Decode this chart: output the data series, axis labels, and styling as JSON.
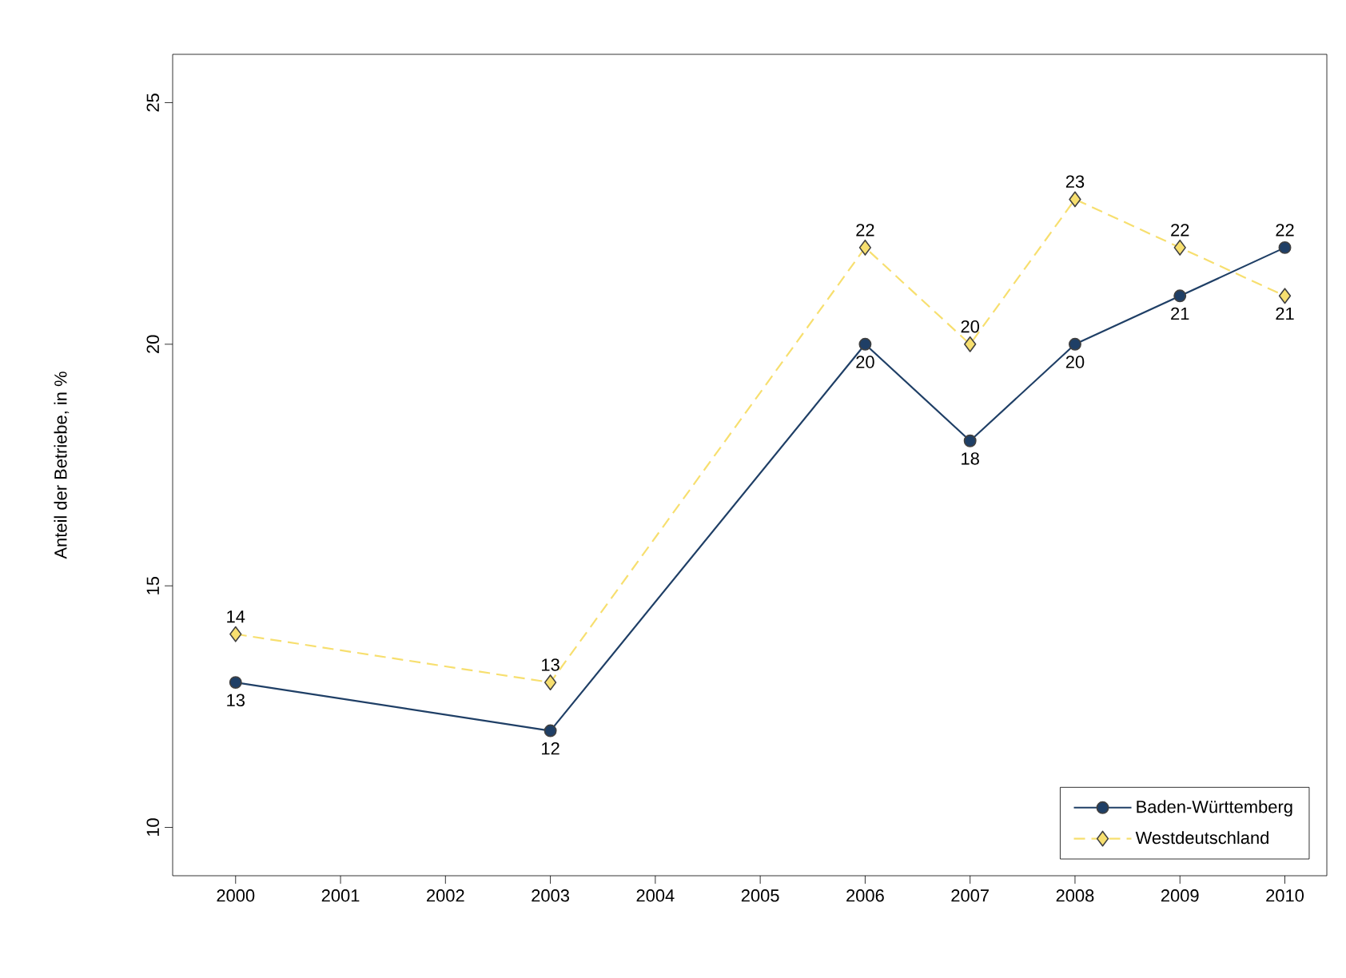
{
  "chart_data": {
    "type": "line",
    "ylabel": "Anteil der Betriebe, in %",
    "x": [
      2000,
      2003,
      2006,
      2007,
      2008,
      2009,
      2010
    ],
    "series": [
      {
        "name": "Baden-Württemberg",
        "color": "#1f3f66",
        "marker": "circle",
        "line_style": "solid",
        "values": [
          13,
          12,
          20,
          18,
          20,
          21,
          22
        ]
      },
      {
        "name": "Westdeutschland",
        "color": "#f7df6f",
        "marker": "diamond",
        "line_style": "dashed",
        "values": [
          14,
          13,
          22,
          20,
          23,
          22,
          21
        ]
      }
    ],
    "xlim": [
      1999.4,
      2010.4
    ],
    "ylim": [
      9,
      26
    ],
    "xticks": [
      2000,
      2001,
      2002,
      2003,
      2004,
      2005,
      2006,
      2007,
      2008,
      2009,
      2010
    ],
    "yticks": [
      10,
      15,
      20,
      25
    ],
    "grid": false,
    "legend": "bottom right",
    "data_labels": true
  }
}
